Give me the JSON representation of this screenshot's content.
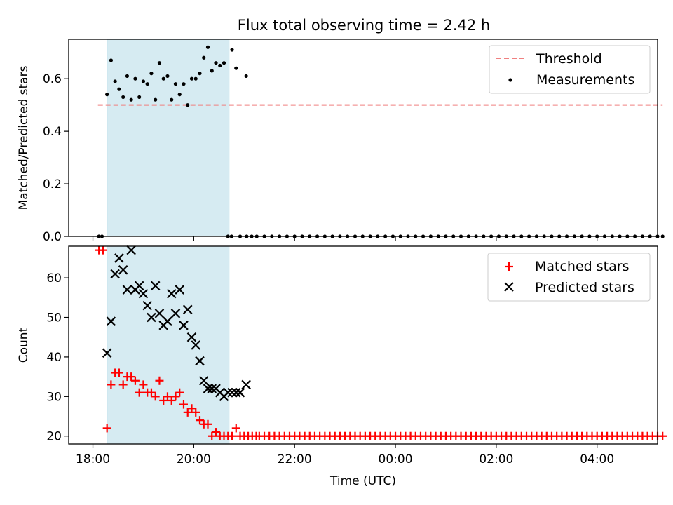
{
  "title": "Flux total observing time = 2.42 h",
  "colors": {
    "threshold": "#f08080",
    "measurements": "#000000",
    "matched": "#ff0000",
    "predicted": "#000000",
    "span": "#add8e6"
  },
  "chart_data": [
    {
      "type": "scatter",
      "ylabel": "Matched/Predicted stars",
      "xlabel": "",
      "x_unit": "hours since 18:00 UTC",
      "xlim": [
        -0.48,
        11.2
      ],
      "ylim": [
        0,
        0.75
      ],
      "yticks": [
        "0.0",
        "0.2",
        "0.4",
        "0.6"
      ],
      "ytick_values": [
        0.0,
        0.2,
        0.4,
        0.6
      ],
      "grid": false,
      "legend_position": "top-right",
      "legend": [
        "Threshold",
        "Measurements"
      ],
      "highlight_span": [
        0.28,
        2.7
      ],
      "threshold": {
        "name": "Threshold",
        "x": [
          0.1,
          11.3
        ],
        "y": 0.5,
        "style": "dashed"
      },
      "series": [
        {
          "name": "Measurements",
          "marker": "dot",
          "x": [
            0.28,
            0.36,
            0.44,
            0.52,
            0.6,
            0.68,
            0.76,
            0.84,
            0.92,
            1.0,
            1.08,
            1.16,
            1.24,
            1.32,
            1.4,
            1.48,
            1.56,
            1.64,
            1.72,
            1.8,
            1.88,
            1.96,
            2.04,
            2.12,
            2.2,
            2.28,
            2.36,
            2.44,
            2.52,
            2.6,
            2.68,
            2.76,
            2.84,
            2.92,
            3.04
          ],
          "y": [
            0.54,
            0.67,
            0.59,
            0.56,
            0.53,
            0.61,
            0.52,
            0.6,
            0.53,
            0.59,
            0.58,
            0.62,
            0.52,
            0.66,
            0.6,
            0.61,
            0.52,
            0.58,
            0.54,
            0.58,
            0.5,
            0.6,
            0.6,
            0.62,
            0.68,
            0.72,
            0.63,
            0.66,
            0.65,
            0.66,
            0.0,
            0.71,
            0.64,
            0.0,
            0.61
          ]
        },
        {
          "name": "Measurements (zero)",
          "marker": "dot",
          "y_value": 0.0,
          "x": [
            0.12,
            0.18,
            2.75,
            3.05,
            3.15,
            3.25,
            3.4,
            3.55,
            3.7,
            3.85,
            4.0,
            4.15,
            4.3,
            4.45,
            4.6,
            4.75,
            4.9,
            5.05,
            5.2,
            5.35,
            5.5,
            5.65,
            5.8,
            5.95,
            6.1,
            6.25,
            6.4,
            6.55,
            6.7,
            6.85,
            7.0,
            7.15,
            7.3,
            7.45,
            7.6,
            7.75,
            7.9,
            8.05,
            8.2,
            8.35,
            8.5,
            8.65,
            8.8,
            8.95,
            9.1,
            9.25,
            9.4,
            9.55,
            9.7,
            9.85,
            10.0,
            10.15,
            10.3,
            10.45,
            10.6,
            10.75,
            10.9,
            11.05,
            11.2,
            11.3
          ]
        }
      ]
    },
    {
      "type": "scatter",
      "ylabel": "Count",
      "xlabel": "Time (UTC)",
      "x_unit": "hours since 18:00 UTC",
      "xlim": [
        -0.48,
        11.2
      ],
      "ylim": [
        18,
        68
      ],
      "yticks": [
        "20",
        "30",
        "40",
        "50",
        "60"
      ],
      "ytick_values": [
        20,
        30,
        40,
        50,
        60
      ],
      "xticks": [
        "18:00",
        "20:00",
        "22:00",
        "00:00",
        "02:00",
        "04:00"
      ],
      "xtick_values": [
        0,
        2,
        4,
        6,
        8,
        10
      ],
      "grid": false,
      "legend_position": "top-right",
      "legend": [
        "Matched stars",
        "Predicted stars"
      ],
      "highlight_span": [
        0.28,
        2.7
      ],
      "series": [
        {
          "name": "Matched stars",
          "marker": "plus",
          "x": [
            0.12,
            0.2,
            0.28,
            0.36,
            0.44,
            0.52,
            0.6,
            0.68,
            0.76,
            0.84,
            0.92,
            1.0,
            1.08,
            1.16,
            1.24,
            1.32,
            1.4,
            1.48,
            1.56,
            1.64,
            1.72,
            1.8,
            1.88,
            1.96,
            2.04,
            2.12,
            2.2,
            2.28,
            2.36,
            2.44,
            2.52,
            2.6,
            2.68,
            2.76,
            2.84,
            2.92,
            3.0,
            3.08,
            3.16,
            3.24
          ],
          "y": [
            67,
            67,
            22,
            33,
            36,
            36,
            33,
            35,
            35,
            34,
            31,
            33,
            31,
            31,
            30,
            34,
            29,
            30,
            29,
            30,
            31,
            28,
            26,
            27,
            26,
            24,
            23,
            23,
            20,
            21,
            20,
            20,
            20,
            20,
            22,
            20,
            20,
            20,
            20,
            20
          ]
        },
        {
          "name": "Matched stars (floor)",
          "marker": "plus",
          "y_value": 20,
          "x": [
            3.3,
            3.4,
            3.5,
            3.6,
            3.7,
            3.8,
            3.9,
            4.0,
            4.1,
            4.2,
            4.3,
            4.4,
            4.5,
            4.6,
            4.7,
            4.8,
            4.9,
            5.0,
            5.1,
            5.2,
            5.3,
            5.4,
            5.5,
            5.6,
            5.7,
            5.8,
            5.9,
            6.0,
            6.1,
            6.2,
            6.3,
            6.4,
            6.5,
            6.6,
            6.7,
            6.8,
            6.9,
            7.0,
            7.1,
            7.2,
            7.3,
            7.4,
            7.5,
            7.6,
            7.7,
            7.8,
            7.9,
            8.0,
            8.1,
            8.2,
            8.3,
            8.4,
            8.5,
            8.6,
            8.7,
            8.8,
            8.9,
            9.0,
            9.1,
            9.2,
            9.3,
            9.4,
            9.5,
            9.6,
            9.7,
            9.8,
            9.9,
            10.0,
            10.1,
            10.2,
            10.3,
            10.4,
            10.5,
            10.6,
            10.7,
            10.8,
            10.9,
            11.0,
            11.1,
            11.2,
            11.3
          ]
        },
        {
          "name": "Predicted stars",
          "marker": "x",
          "x": [
            0.28,
            0.36,
            0.44,
            0.52,
            0.6,
            0.68,
            0.76,
            0.84,
            0.92,
            1.0,
            1.08,
            1.16,
            1.24,
            1.32,
            1.4,
            1.48,
            1.56,
            1.64,
            1.72,
            1.8,
            1.88,
            1.96,
            2.04,
            2.12,
            2.2,
            2.28,
            2.36,
            2.44,
            2.52,
            2.6,
            2.68,
            2.76,
            2.84,
            2.92,
            3.04
          ],
          "y": [
            41,
            49,
            61,
            65,
            62,
            57,
            67,
            57,
            58,
            56,
            53,
            50,
            58,
            51,
            48,
            49,
            56,
            51,
            57,
            48,
            52,
            45,
            43,
            39,
            34,
            32,
            32,
            32,
            31,
            30,
            31,
            31,
            31,
            31,
            33
          ]
        }
      ]
    }
  ]
}
